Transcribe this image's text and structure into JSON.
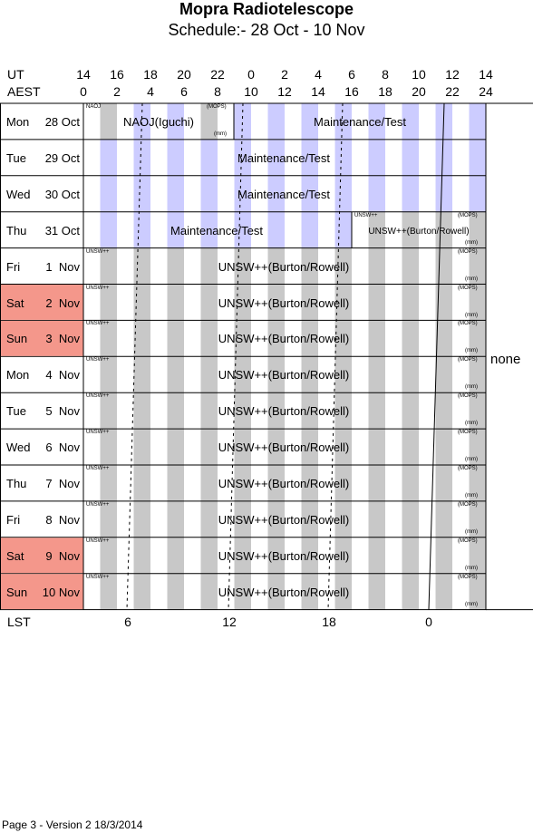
{
  "header": {
    "title": "Mopra Radiotelescope",
    "subtitle": "Schedule:- 28 Oct - 10 Nov"
  },
  "axes": {
    "ut_label": "UT",
    "aest_label": "AEST",
    "lst_label": "LST",
    "ut_ticks": [
      "14",
      "16",
      "18",
      "20",
      "22",
      "0",
      "2",
      "4",
      "6",
      "8",
      "10",
      "12",
      "14"
    ],
    "aest_ticks": [
      "0",
      "2",
      "4",
      "6",
      "8",
      "10",
      "12",
      "14",
      "16",
      "18",
      "20",
      "22",
      "24"
    ],
    "lst_ticks": [
      "6",
      "12",
      "18",
      "0"
    ]
  },
  "days": [
    {
      "dow": "Mon",
      "date": "28 Oct",
      "weekend": false
    },
    {
      "dow": "Tue",
      "date": "29 Oct",
      "weekend": false
    },
    {
      "dow": "Wed",
      "date": "30 Oct",
      "weekend": false
    },
    {
      "dow": "Thu",
      "date": "31 Oct",
      "weekend": false
    },
    {
      "dow": "Fri",
      "date": "1  Nov",
      "weekend": false
    },
    {
      "dow": "Sat",
      "date": "2  Nov",
      "weekend": true
    },
    {
      "dow": "Sun",
      "date": "3  Nov",
      "weekend": true
    },
    {
      "dow": "Mon",
      "date": "4  Nov",
      "weekend": false
    },
    {
      "dow": "Tue",
      "date": "5  Nov",
      "weekend": false
    },
    {
      "dow": "Wed",
      "date": "6  Nov",
      "weekend": false
    },
    {
      "dow": "Thu",
      "date": "7  Nov",
      "weekend": false
    },
    {
      "dow": "Fri",
      "date": "8  Nov",
      "weekend": false
    },
    {
      "dow": "Sat",
      "date": "9  Nov",
      "weekend": true
    },
    {
      "dow": "Sun",
      "date": "10 Nov",
      "weekend": true
    }
  ],
  "blocks": {
    "naoj_label": "NAOJ(Iguchi)",
    "naoj_tag": "NAOJ",
    "maint_label": "Maintenance/Test",
    "unsw_label": "UNSW++(Burton/Rowell)",
    "unsw_small_label": "UNSW++(Burton/Rowell)",
    "unsw_tag": "UNSW++",
    "mops_tag": "(MOPS)",
    "mm_tag": "(mm)"
  },
  "side_note": "none",
  "footer": "Page 3 - Version 2  18/3/2014",
  "colors": {
    "weekend": "#f4978b",
    "day_stripe": "#c8c8c8",
    "night_stripe": "#ccccff",
    "grid": "#000000"
  }
}
